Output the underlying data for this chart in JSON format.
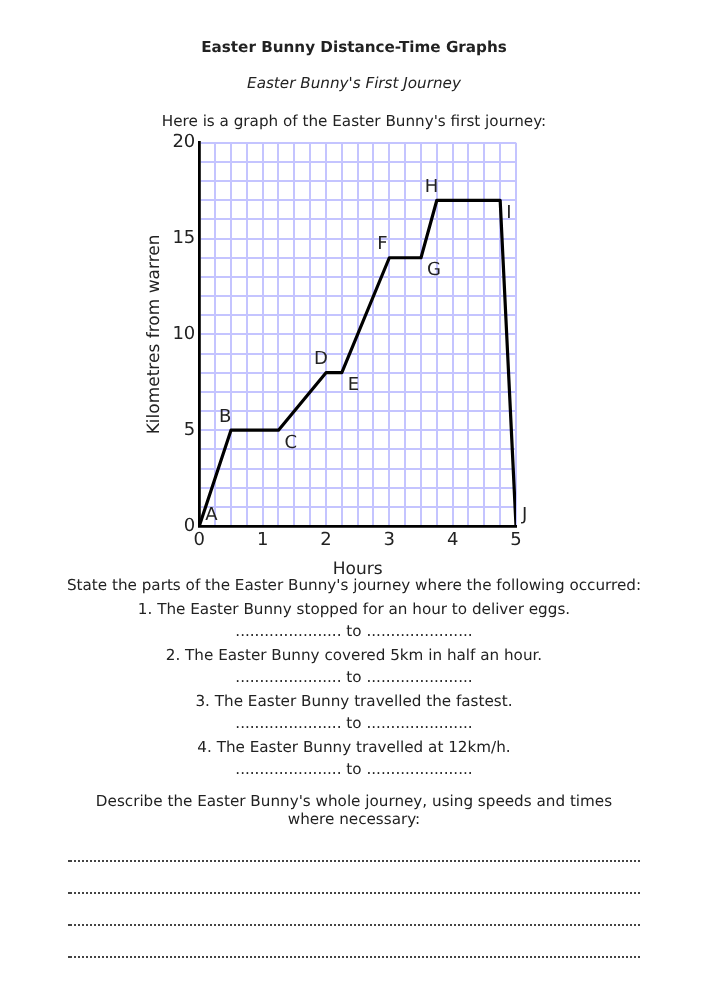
{
  "chart_data": {
    "type": "line",
    "title": "Easter Bunny Distance-Time Graphs",
    "subtitle": "Easter Bunny's First Journey",
    "xlabel": "Hours",
    "ylabel": "Kilometres from warren",
    "x": [
      0,
      0.5,
      1.25,
      2,
      2.25,
      3,
      3.5,
      3.75,
      4.75,
      5
    ],
    "series": [
      {
        "color": "#000000",
        "values": [
          0,
          5,
          5,
          8,
          8,
          14,
          14,
          17,
          17,
          0
        ]
      }
    ],
    "xlim": [
      0,
      5
    ],
    "ylim": [
      0,
      20
    ],
    "xticks": [
      0,
      {
        "value": 0.25,
        "label": null
      },
      {
        "value": 0.5,
        "label": null
      },
      {
        "value": 0.75,
        "label": null
      },
      1,
      {
        "value": 1.25,
        "label": null
      },
      {
        "value": 1.5,
        "label": null
      },
      {
        "value": 1.75,
        "label": null
      },
      2,
      {
        "value": 2.25,
        "label": null
      },
      {
        "value": 2.5,
        "label": null
      },
      {
        "value": 2.75,
        "label": null
      },
      3,
      {
        "value": 3.25,
        "label": null
      },
      {
        "value": 3.5,
        "label": null
      },
      {
        "value": 3.75,
        "label": null
      },
      4,
      {
        "value": 4.25,
        "label": null
      },
      {
        "value": 4.5,
        "label": null
      },
      {
        "value": 4.75,
        "label": null
      },
      5
    ],
    "yticks": [
      0,
      {
        "value": 1,
        "label": null
      },
      {
        "value": 2,
        "label": null
      },
      {
        "value": 3,
        "label": null
      },
      {
        "value": 4,
        "label": null
      },
      5,
      {
        "value": 6,
        "label": null
      },
      {
        "value": 7,
        "label": null
      },
      {
        "value": 8,
        "label": null
      },
      {
        "value": 9,
        "label": null
      },
      10,
      {
        "value": 11,
        "label": null
      },
      {
        "value": 12,
        "label": null
      },
      {
        "value": 13,
        "label": null
      },
      {
        "value": 14,
        "label": null
      },
      15,
      {
        "value": 16,
        "label": null
      },
      {
        "value": 17,
        "label": null
      },
      {
        "value": 18,
        "label": null
      },
      {
        "value": 19,
        "label": null
      },
      20
    ],
    "grid": true,
    "marker": "none",
    "legend": false,
    "annotations": [
      "Here is a graph of the Easter Bunny's first journey:",
      {
        "text": "A",
        "x": 0,
        "y": 0
      },
      {
        "text": "B",
        "x": 0.5,
        "y": 5
      },
      {
        "text": "C",
        "x": 1.25,
        "y": 5
      },
      {
        "text": "D",
        "x": 2,
        "y": 8
      },
      {
        "text": "E",
        "x": 2.25,
        "y": 8
      },
      {
        "text": "F",
        "x": 3,
        "y": 14
      },
      {
        "text": "G",
        "x": 3.5,
        "y": 14
      },
      {
        "text": "H",
        "x": 3.75,
        "y": 17
      },
      {
        "text": "I",
        "x": 4.75,
        "y": 17
      },
      {
        "text": "J",
        "x": 5,
        "y": 0
      },
      "State the parts of the Easter Bunny's journey where the following occurred:",
      "1. The Easter Bunny stopped for an hour to deliver eggs.",
      "...................... to ......................",
      "2. The Easter Bunny covered 5km in half an hour.",
      "...................... to ......................",
      "3. The Easter Bunny travelled the fastest.",
      "...................... to ......................",
      "4. The Easter Bunny travelled at 12km/h.",
      "...................... to ......................",
      "Describe the Easter Bunny's whole journey, using speeds and times where necessary:"
    ]
  }
}
